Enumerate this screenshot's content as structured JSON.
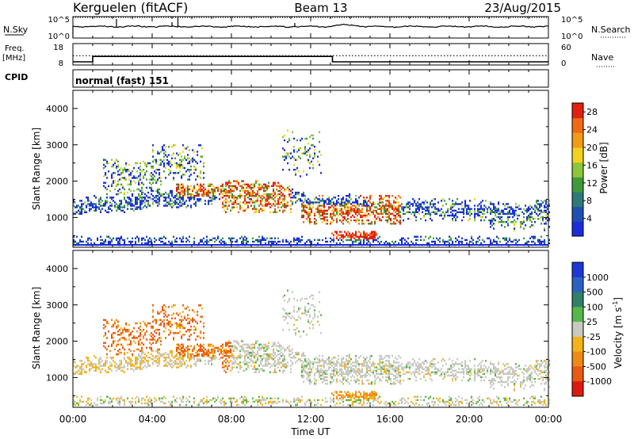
{
  "header": {
    "station": "Kerguelen (fitACF)",
    "beam": "Beam 13",
    "date": "23/Aug/2015"
  },
  "panels": {
    "nsky": {
      "left_label": "N.Sky",
      "right_label": "N.Search",
      "left_ticks": [
        "10^5",
        "10^0"
      ],
      "right_ticks": [
        "10^5",
        "10^0"
      ]
    },
    "freq": {
      "left_label_1": "Freq.",
      "left_label_2": "[MHz]",
      "right_label": "Nave",
      "left_ticks": [
        "18",
        "8"
      ],
      "right_ticks": [
        "60",
        "0"
      ]
    },
    "cpid": {
      "label": "CPID",
      "text": "normal (fast) 151"
    }
  },
  "colors": {
    "power_scale": [
      "#1a2ddd",
      "#1f4fb0",
      "#2e7a78",
      "#3f9a3a",
      "#8cc63c",
      "#f2d21c",
      "#f39a18",
      "#f06a14",
      "#e02010"
    ],
    "velocity_scale": [
      "#1c37d6",
      "#2c61c4",
      "#2f7f6a",
      "#55b848",
      "#c9c9c2",
      "#f2b418",
      "#ee8a18",
      "#e95a14",
      "#dd1a10"
    ]
  },
  "chart_data": [
    {
      "type": "line",
      "name_left": "N.Sky",
      "name_right": "N.Search",
      "xlabel": "Time UT",
      "x_range": [
        "00:00",
        "24:00"
      ],
      "y_log": true,
      "y_range": [
        "10^0",
        "10^5"
      ]
    },
    {
      "type": "line",
      "name_left": "Freq. [MHz]",
      "name_right": "Nave",
      "y_range_left": [
        8,
        18
      ],
      "y_range_right": [
        0,
        60
      ],
      "freq_segments": [
        {
          "start": 0.0,
          "end": 1.0,
          "value": 9.5
        },
        {
          "start": 1.0,
          "end": 13.1,
          "value": 12.0
        },
        {
          "start": 13.1,
          "end": 24.0,
          "value": 9.5
        }
      ],
      "nave_level": 26
    },
    {
      "type": "heatmap",
      "ylabel": "Slant Range [km]",
      "yticks": [
        1000,
        2000,
        3000,
        4000
      ],
      "ylim": [
        180,
        4500
      ],
      "colorbar_label": "Power [dB]",
      "colorbar_ticks": [
        4,
        8,
        12,
        16,
        20,
        24,
        28
      ],
      "colorbar_range": [
        0,
        30
      ]
    },
    {
      "type": "heatmap",
      "ylabel": "Slant Range [km]",
      "xlabel": "Time UT",
      "yticks": [
        1000,
        2000,
        3000,
        4000
      ],
      "ylim": [
        180,
        4500
      ],
      "xticks": [
        "00:00",
        "04:00",
        "08:00",
        "12:00",
        "16:00",
        "20:00",
        "00:00"
      ],
      "colorbar_label": "Velocity [m s^-1]",
      "colorbar_ticks": [
        1000,
        500,
        100,
        25,
        -25,
        -100,
        -500,
        -1000
      ]
    }
  ]
}
